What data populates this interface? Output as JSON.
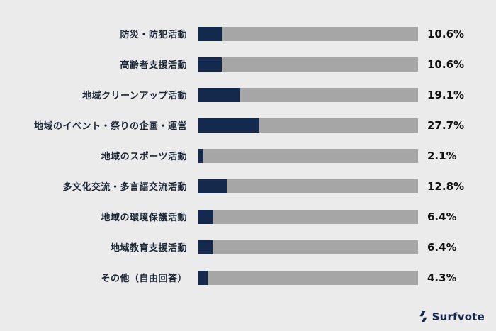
{
  "chart_data": {
    "type": "bar",
    "orientation": "horizontal",
    "title": "",
    "xlabel": "",
    "ylabel": "",
    "xlim": [
      0,
      100
    ],
    "grid": false,
    "legend": false,
    "categories": [
      "防災・防犯活動",
      "高齢者支援活動",
      "地域クリーンアップ活動",
      "地域のイベント・祭りの企画・運営",
      "地域のスポーツ活動",
      "多文化交流・多言語交流活動",
      "地域の環境保護活動",
      "地域教育支援活動",
      "その他（自由回答）"
    ],
    "values": [
      10.6,
      10.6,
      19.1,
      27.7,
      2.1,
      12.8,
      6.4,
      6.4,
      4.3
    ],
    "value_labels": [
      "10.6%",
      "10.6%",
      "19.1%",
      "27.7%",
      "2.1%",
      "12.8%",
      "6.4%",
      "6.4%",
      "4.3%"
    ],
    "colors": {
      "bar_fill": "#14294e",
      "bar_track": "#a6a6a6",
      "background": "#ebebeb",
      "label_text": "#1b2637",
      "value_text": "#111111"
    }
  },
  "footer": {
    "brand": "Surfvote",
    "logo_icon": "surfvote-logo-icon"
  }
}
